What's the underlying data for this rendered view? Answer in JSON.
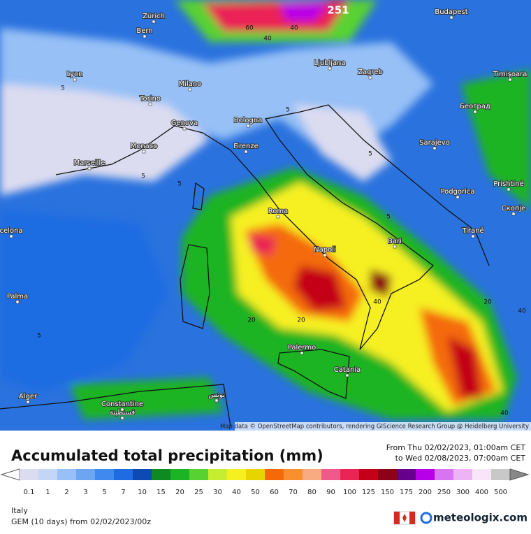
{
  "map": {
    "cities": [
      "Zürich",
      "Bern",
      "Budapest",
      "Lyon",
      "Milano",
      "Ljubljana",
      "Zagreb",
      "Timişoara",
      "Torino",
      "Београд",
      "Bologna",
      "Genova",
      "Monaco",
      "Firenze",
      "Sarajevo",
      "Marseille",
      "Prishtinë",
      "Podgorica",
      "Скопје",
      "Roma",
      "Tiranë",
      "celona",
      "Napoli",
      "Bari",
      "Palma",
      "Palermo",
      "Catania",
      "Alger",
      "تونس",
      "Constantine",
      "قسنطينة"
    ],
    "max_label": "251",
    "contour_labels": [
      "60",
      "40",
      "40",
      "5",
      "5",
      "5",
      "5",
      "5",
      "5",
      "20",
      "20",
      "40",
      "40",
      "20",
      "40",
      "5"
    ],
    "attribution": "Map data © OpenStreetMap contributors, rendering GIScience Research Group @ Heidelberg University"
  },
  "legend": {
    "title": "Accumulated total precipitation (mm)",
    "period": [
      "From Thu 02/02/2023, 01:00am CET",
      "to Wed 02/08/2023, 07:00am CET"
    ],
    "scale": [
      {
        "label": "0.1",
        "color": "#dcdcf0"
      },
      {
        "label": "1",
        "color": "#c4d6f6"
      },
      {
        "label": "2",
        "color": "#96c0f6"
      },
      {
        "label": "3",
        "color": "#6ca6f2"
      },
      {
        "label": "5",
        "color": "#3f8aee"
      },
      {
        "label": "7",
        "color": "#1f6ce2"
      },
      {
        "label": "10",
        "color": "#0e4ab4"
      },
      {
        "label": "15",
        "color": "#0f8a22"
      },
      {
        "label": "20",
        "color": "#1cb424"
      },
      {
        "label": "25",
        "color": "#58d232"
      },
      {
        "label": "30",
        "color": "#c6ee30"
      },
      {
        "label": "40",
        "color": "#f6f020"
      },
      {
        "label": "50",
        "color": "#e8d400"
      },
      {
        "label": "60",
        "color": "#f46a0a"
      },
      {
        "label": "70",
        "color": "#f89030"
      },
      {
        "label": "80",
        "color": "#f8aa80"
      },
      {
        "label": "90",
        "color": "#f05a8a"
      },
      {
        "label": "100",
        "color": "#ea2454"
      },
      {
        "label": "125",
        "color": "#c40018"
      },
      {
        "label": "150",
        "color": "#8c0018"
      },
      {
        "label": "175",
        "color": "#66008c"
      },
      {
        "label": "200",
        "color": "#b800e8"
      },
      {
        "label": "250",
        "color": "#d874f2"
      },
      {
        "label": "300",
        "color": "#ecb4f4"
      },
      {
        "label": "400",
        "color": "#f8e6f8"
      },
      {
        "label": "500",
        "color": "#c8c8c8"
      }
    ]
  },
  "footer": {
    "region": "Italy",
    "model": "GEM (10 days) from 02/02/2023/00z",
    "brand": "meteologix.com"
  }
}
